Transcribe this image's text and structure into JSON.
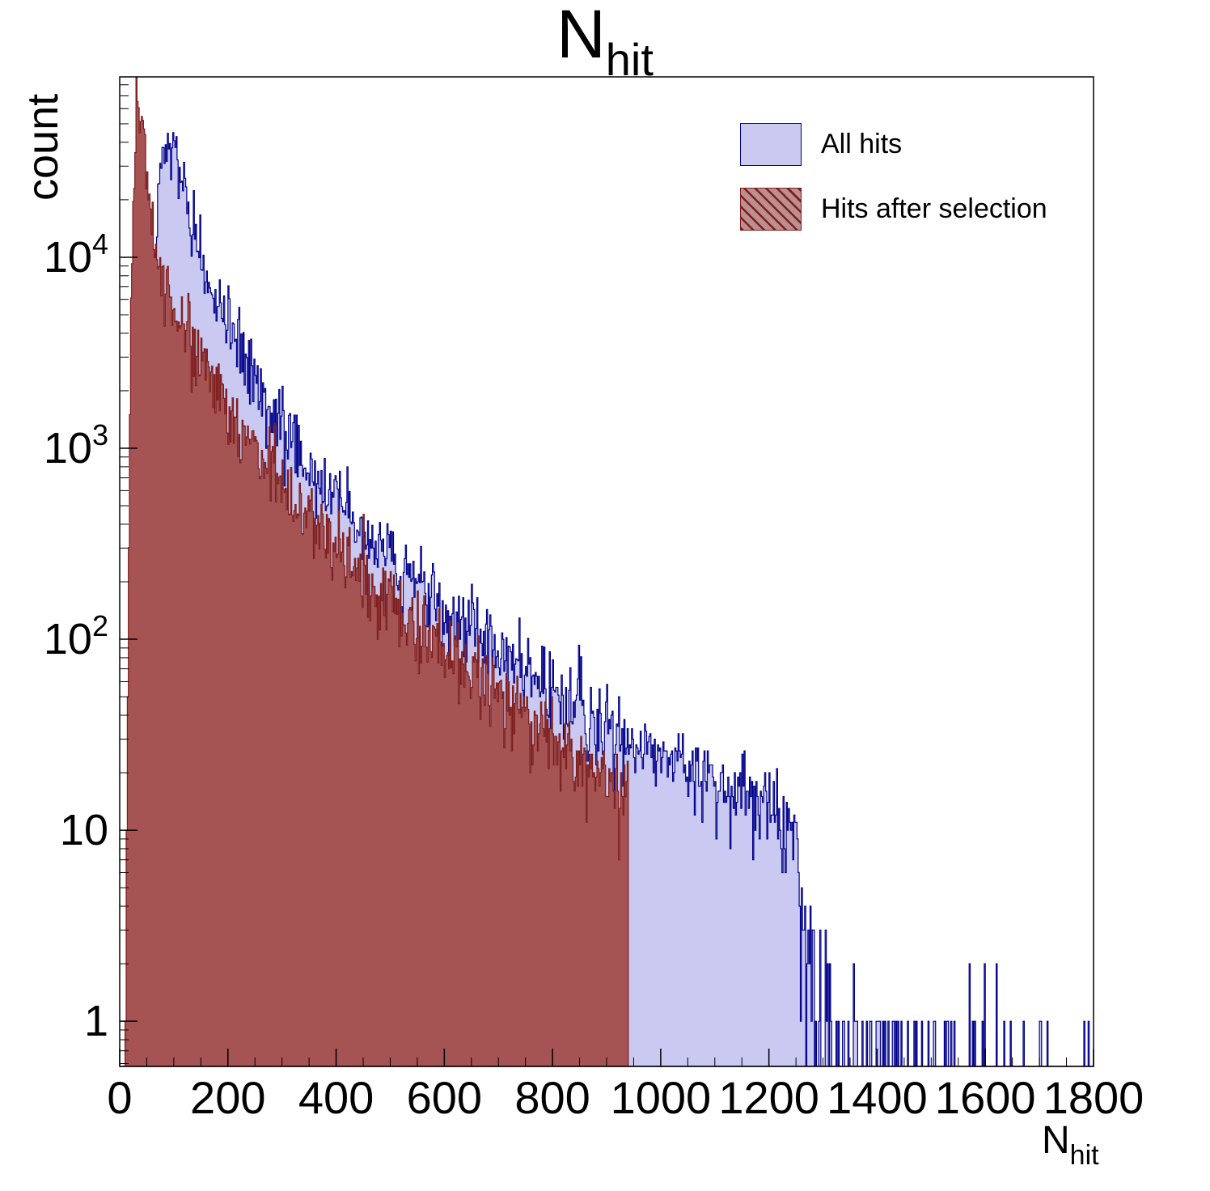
{
  "title": {
    "main": "N",
    "sub": "hit"
  },
  "y_axis": {
    "label": "count",
    "scale": "log",
    "min": 0.58,
    "max": 88000,
    "tick_labels": [
      {
        "value": 1,
        "base": "1",
        "exp": ""
      },
      {
        "value": 10,
        "base": "10",
        "exp": ""
      },
      {
        "value": 100,
        "base": "10",
        "exp": "2"
      },
      {
        "value": 1000,
        "base": "10",
        "exp": "3"
      },
      {
        "value": 10000,
        "base": "10",
        "exp": "4"
      }
    ]
  },
  "x_axis": {
    "label_main": "N",
    "label_sub": "hit",
    "min": 0,
    "max": 1800,
    "major_step": 200,
    "minor_step": 50,
    "tick_labels": [
      "0",
      "200",
      "400",
      "600",
      "800",
      "1000",
      "1200",
      "1400",
      "1600",
      "1800"
    ]
  },
  "legend": {
    "items": [
      {
        "label": "All hits",
        "swatch": "blue-solid"
      },
      {
        "label": "Hits after selection",
        "swatch": "red-hatched"
      }
    ]
  },
  "colors": {
    "all_hits_fill": "#c9c9f1",
    "all_hits_line": "#00008b",
    "selected_fill": "#a65353",
    "selected_line": "#7d1d1d",
    "axis": "#000000"
  },
  "chart_data": {
    "type": "histogram",
    "title": "N_hit",
    "xlabel": "N_hit",
    "ylabel": "count",
    "y_scale": "log",
    "x_range": [
      0,
      1800
    ],
    "y_range": [
      0.58,
      88000
    ],
    "bin_width": 2,
    "legend_position": "top-right",
    "series": [
      {
        "name": "All hits",
        "fill_color": "#c9c9f1",
        "line_color": "#00008b",
        "cutoff": null,
        "anchors": [
          [
            6,
            0.4
          ],
          [
            20,
            0.8
          ],
          [
            34,
            2
          ],
          [
            42,
            15
          ],
          [
            50,
            120
          ],
          [
            58,
            2000
          ],
          [
            65,
            9000
          ],
          [
            75,
            28000
          ],
          [
            85,
            45000
          ],
          [
            95,
            42000
          ],
          [
            110,
            30000
          ],
          [
            130,
            17000
          ],
          [
            150,
            10500
          ],
          [
            175,
            6500
          ],
          [
            200,
            4300
          ],
          [
            230,
            2900
          ],
          [
            260,
            2000
          ],
          [
            300,
            1300
          ],
          [
            350,
            800
          ],
          [
            400,
            530
          ],
          [
            450,
            380
          ],
          [
            500,
            270
          ],
          [
            550,
            200
          ],
          [
            600,
            145
          ],
          [
            650,
            110
          ],
          [
            700,
            85
          ],
          [
            750,
            65
          ],
          [
            800,
            52
          ],
          [
            850,
            42
          ],
          [
            900,
            34
          ],
          [
            950,
            28
          ],
          [
            1000,
            24
          ],
          [
            1050,
            21
          ],
          [
            1100,
            18
          ],
          [
            1150,
            16
          ],
          [
            1200,
            14
          ],
          [
            1230,
            11
          ],
          [
            1255,
            7
          ],
          [
            1270,
            3
          ],
          [
            1290,
            1.5
          ],
          [
            1320,
            0.8
          ],
          [
            1360,
            0.45
          ],
          [
            1420,
            0.35
          ],
          [
            1480,
            0.3
          ],
          [
            1540,
            0.2
          ],
          [
            1600,
            0.18
          ],
          [
            1660,
            0.12
          ],
          [
            1720,
            0.1
          ],
          [
            1800,
            0.05
          ]
        ]
      },
      {
        "name": "Hits after selection",
        "fill_color": "#a65353",
        "line_color": "#7d1d1d",
        "cutoff": 940,
        "anchors": [
          [
            10,
            0.5
          ],
          [
            14,
            30
          ],
          [
            18,
            800
          ],
          [
            24,
            15000
          ],
          [
            30,
            50000
          ],
          [
            35,
            65000
          ],
          [
            40,
            52000
          ],
          [
            48,
            30000
          ],
          [
            60,
            15000
          ],
          [
            75,
            8500
          ],
          [
            90,
            6200
          ],
          [
            110,
            4700
          ],
          [
            130,
            3700
          ],
          [
            150,
            2900
          ],
          [
            180,
            2000
          ],
          [
            220,
            1350
          ],
          [
            260,
            950
          ],
          [
            300,
            650
          ],
          [
            350,
            430
          ],
          [
            400,
            300
          ],
          [
            450,
            225
          ],
          [
            500,
            165
          ],
          [
            550,
            120
          ],
          [
            600,
            92
          ],
          [
            650,
            70
          ],
          [
            700,
            52
          ],
          [
            750,
            40
          ],
          [
            800,
            31
          ],
          [
            850,
            24
          ],
          [
            900,
            19
          ],
          [
            940,
            15
          ]
        ]
      }
    ]
  }
}
